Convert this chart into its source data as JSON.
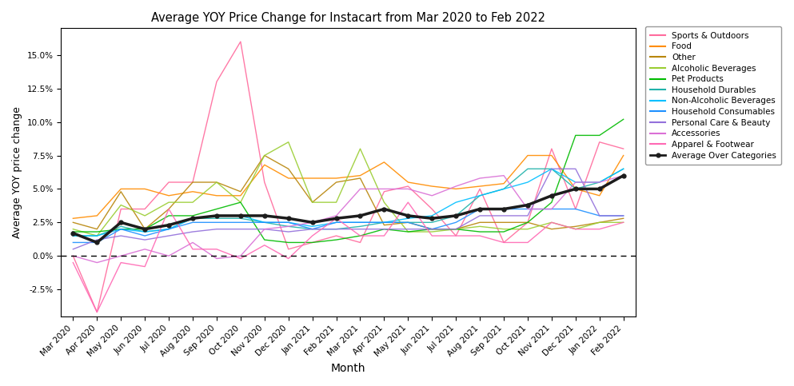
{
  "title": "Average YOY Price Change for Instacart from Mar 2020 to Feb 2022",
  "xlabel": "Month",
  "ylabel": "Average YOY price change",
  "months": [
    "Mar 2020",
    "Apr 2020",
    "May 2020",
    "Jun 2020",
    "Jul 2020",
    "Aug 2020",
    "Sep 2020",
    "Oct 2020",
    "Nov 2020",
    "Dec 2020",
    "Jan 2021",
    "Feb 2021",
    "Mar 2021",
    "Apr 2021",
    "May 2021",
    "Jun 2021",
    "Jul 2021",
    "Aug 2021",
    "Sep 2021",
    "Oct 2021",
    "Nov 2021",
    "Dec 2021",
    "Jan 2022",
    "Feb 2022"
  ],
  "series": {
    "Sports & Outdoors": {
      "color": "#FF6B9D",
      "values": [
        0.0,
        -4.2,
        3.5,
        3.5,
        5.5,
        5.5,
        13.0,
        16.0,
        5.5,
        0.5,
        1.0,
        1.5,
        1.0,
        4.8,
        5.2,
        3.5,
        1.5,
        5.0,
        1.0,
        2.5,
        8.0,
        3.5,
        8.5,
        8.0
      ]
    },
    "Food": {
      "color": "#FF8C00",
      "values": [
        2.8,
        3.0,
        5.0,
        5.0,
        4.5,
        4.8,
        4.5,
        4.5,
        6.8,
        5.8,
        5.8,
        5.8,
        6.0,
        7.0,
        5.5,
        5.2,
        5.0,
        5.2,
        5.4,
        7.5,
        7.5,
        5.0,
        4.5,
        7.5
      ]
    },
    "Other": {
      "color": "#B8860B",
      "values": [
        2.5,
        2.0,
        4.8,
        2.0,
        3.5,
        5.5,
        5.5,
        4.8,
        7.5,
        6.5,
        4.0,
        5.5,
        5.8,
        2.3,
        2.5,
        2.0,
        2.0,
        2.5,
        2.5,
        2.5,
        2.0,
        2.2,
        2.5,
        2.8
      ]
    },
    "Alcoholic Beverages": {
      "color": "#9ACD32",
      "values": [
        2.0,
        1.5,
        3.8,
        3.0,
        4.0,
        4.0,
        5.5,
        4.0,
        7.5,
        8.5,
        4.0,
        4.0,
        8.0,
        4.0,
        1.8,
        1.8,
        2.0,
        2.2,
        2.0,
        2.0,
        2.5,
        2.0,
        2.5,
        2.5
      ]
    },
    "Pet Products": {
      "color": "#00BB00",
      "values": [
        1.8,
        1.8,
        2.0,
        2.0,
        3.0,
        3.0,
        3.5,
        4.0,
        1.2,
        1.0,
        1.0,
        1.2,
        1.5,
        2.0,
        1.8,
        2.0,
        2.0,
        1.8,
        1.8,
        2.5,
        4.0,
        9.0,
        9.0,
        10.2
      ]
    },
    "Household Durables": {
      "color": "#20B2AA",
      "values": [
        1.5,
        1.5,
        2.2,
        1.8,
        2.0,
        2.8,
        2.8,
        2.8,
        2.5,
        2.2,
        2.0,
        2.0,
        2.2,
        2.5,
        2.5,
        2.5,
        3.0,
        4.5,
        5.0,
        6.5,
        6.5,
        5.0,
        5.5,
        6.5
      ]
    },
    "Non-Alcoholic Beverages": {
      "color": "#00BFFF",
      "values": [
        1.5,
        1.5,
        2.0,
        1.8,
        2.0,
        2.8,
        3.0,
        3.0,
        2.5,
        2.5,
        2.2,
        2.5,
        2.5,
        2.5,
        2.8,
        3.0,
        4.0,
        4.5,
        5.0,
        5.5,
        6.5,
        5.5,
        5.5,
        6.5
      ]
    },
    "Household Consumables": {
      "color": "#1E90FF",
      "values": [
        1.0,
        1.0,
        2.0,
        1.5,
        2.0,
        2.5,
        2.5,
        2.5,
        2.5,
        2.5,
        2.0,
        2.5,
        2.5,
        2.5,
        2.5,
        2.0,
        2.5,
        3.5,
        3.5,
        3.5,
        3.5,
        3.5,
        3.0,
        3.0
      ]
    },
    "Personal Care & Beauty": {
      "color": "#9370DB",
      "values": [
        0.5,
        1.2,
        1.5,
        1.2,
        1.5,
        1.8,
        2.0,
        2.0,
        2.0,
        1.8,
        2.0,
        2.0,
        2.0,
        2.0,
        2.0,
        2.0,
        2.0,
        3.0,
        3.0,
        3.0,
        6.5,
        6.5,
        3.0,
        3.0
      ]
    },
    "Accessories": {
      "color": "#DA70D6",
      "values": [
        0.0,
        -0.5,
        0.0,
        0.5,
        0.0,
        1.0,
        -0.2,
        0.0,
        2.0,
        2.2,
        2.5,
        3.0,
        5.0,
        5.0,
        5.0,
        4.5,
        5.2,
        5.8,
        6.0,
        3.5,
        3.5,
        5.5,
        5.5,
        6.0
      ]
    },
    "Apparel & Footwear": {
      "color": "#FF69B4",
      "values": [
        -0.5,
        -4.2,
        -0.5,
        -0.8,
        3.5,
        0.5,
        0.5,
        -0.2,
        0.8,
        -0.2,
        1.5,
        2.8,
        1.5,
        1.5,
        4.0,
        1.5,
        1.5,
        1.5,
        1.0,
        1.0,
        2.5,
        2.0,
        2.0,
        2.5
      ]
    },
    "Average Over Categories": {
      "color": "#1C1C1C",
      "values": [
        1.7,
        1.0,
        2.5,
        2.0,
        2.3,
        2.8,
        3.0,
        3.0,
        3.0,
        2.8,
        2.5,
        2.8,
        3.0,
        3.5,
        3.0,
        2.8,
        3.0,
        3.5,
        3.5,
        3.8,
        4.5,
        5.0,
        5.0,
        6.0
      ]
    }
  },
  "ylim": [
    -4.5,
    17.0
  ],
  "yticks": [
    -2.5,
    0.0,
    2.5,
    5.0,
    7.5,
    10.0,
    12.5,
    15.0
  ],
  "figsize": [
    9.93,
    4.83
  ],
  "dpi": 100
}
